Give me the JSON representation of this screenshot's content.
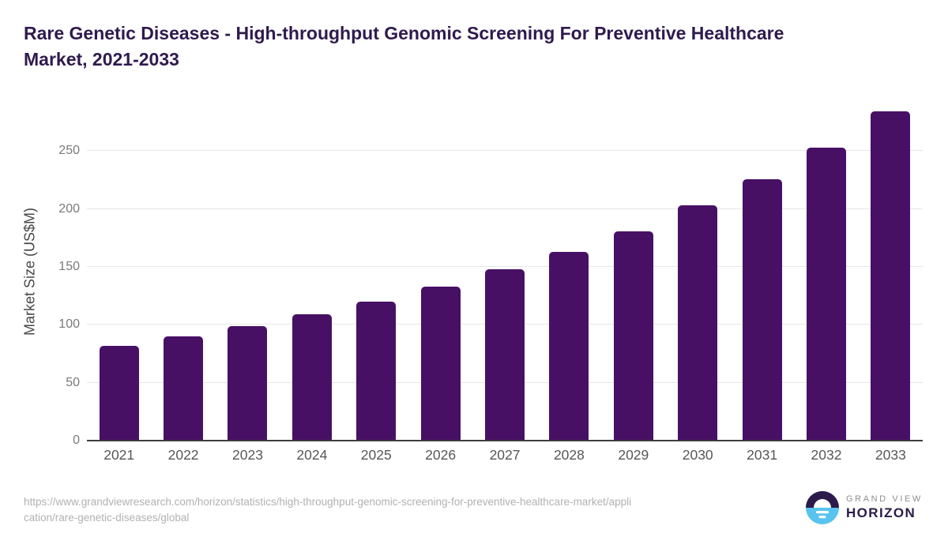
{
  "header": {
    "title_line1": "Rare Genetic Diseases - High-throughput Genomic Screening For Preventive Healthcare",
    "title_line2": "Market, 2021-2033"
  },
  "chart_data": {
    "type": "bar",
    "title": "Rare Genetic Diseases - High-throughput Genomic Screening For Preventive Healthcare Market, 2021-2033",
    "categories": [
      "2021",
      "2022",
      "2023",
      "2024",
      "2025",
      "2026",
      "2027",
      "2028",
      "2029",
      "2030",
      "2031",
      "2032",
      "2033"
    ],
    "values": [
      82,
      90,
      99,
      109,
      120,
      133,
      148,
      163,
      181,
      203,
      226,
      253,
      284
    ],
    "xlabel": "",
    "ylabel": "Market Size (US$M)",
    "ylim": [
      0,
      290
    ],
    "yticks": [
      0,
      50,
      100,
      150,
      200,
      250
    ],
    "grid": true,
    "legend": "none",
    "bar_color": "#481065"
  },
  "footer": {
    "source_url_line1": "https://www.grandviewresearch.com/horizon/statistics/high-throughput-genomic-screening-for-preventive-healthcare-market/appli",
    "source_url_line2": "cation/rare-genetic-diseases/global",
    "logo": {
      "top_text": "GRAND VIEW",
      "bottom_text": "HORIZON",
      "icon": "sunrise-horizon-icon",
      "dark_color": "#2b1a4a",
      "blue_color": "#58c3ee"
    }
  }
}
